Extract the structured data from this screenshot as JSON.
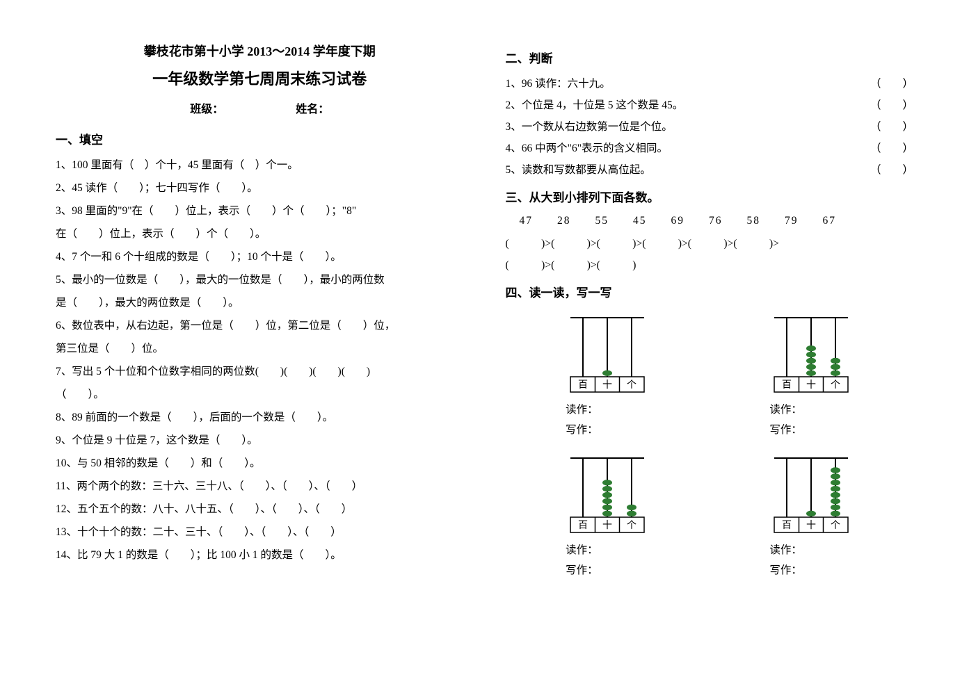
{
  "header": "攀枝花市第十小学 2013～2014 学年度下期",
  "title": "一年级数学第七周周末练习试卷",
  "class_label": "班级：",
  "name_label": "姓名：",
  "section1_title": "一、填空",
  "q1": "1、100 里面有（　）个十，45 里面有（　）个一。",
  "q2": "2、45 读作（　　）；七十四写作（　　）。",
  "q3a": "3、98 里面的\"9\"在（　　）位上，表示（　　）个（　　）；\"8\"",
  "q3b": "在（　　）位上，表示（　　）个（　　）。",
  "q4": "4、7 个一和 6 个十组成的数是（　　）；10 个十是（　　）。",
  "q5a": "5、最小的一位数是（　　），最大的一位数是（　　），最小的两位数",
  "q5b": "是（　　），最大的两位数是（　　）。",
  "q6a": "6、数位表中，从右边起，第一位是（　　）位，第二位是（　　）位，",
  "q6b": "第三位是（　　）位。",
  "q7a": "7、写出 5 个十位和个位数字相同的两位数(　　)(　　)(　　)(　　)",
  "q7b": "（　　）。",
  "q8": "8、89 前面的一个数是（　　），后面的一个数是（　　）。",
  "q9": "9、个位是 9 十位是 7，这个数是（　　）。",
  "q10": "10、与 50 相邻的数是（　　）和（　　）。",
  "q11": "11、两个两个的数：三十六、三十八、（　　）、（　　）、（　　）",
  "q12": "12、五个五个的数：八十、八十五、（　　）、（　　）、（　　）",
  "q13": "13、十个十个的数：二十、三十、（　　）、（　　）、（　　）",
  "q14": "14、比 79 大 1 的数是（　　）；比 100 小 1 的数是（　　）。",
  "section2_title": "二、判断",
  "j1": "1、96 读作：六十九。",
  "j2": "2、个位是 4，十位是 5 这个数是 45。",
  "j3": "3、一个数从右边数第一位是个位。",
  "j4": "4、66 中两个\"6\"表示的含义相同。",
  "j5": "5、读数和写数都要从高位起。",
  "judge_paren": "（　　）",
  "section3_title": "三、从大到小排列下面各数。",
  "sort_nums": "47　　28　　55　　45　　69　　76　　58　　79　　67",
  "sort_line1": "(　　　)>(　　　)>(　　　)>(　　　)>(　　　)>(　　　)>",
  "sort_line2": "(　　　)>(　　　)>(　　　)",
  "section4_title": "四、读一读，写一写",
  "read_label": "读作：",
  "write_label": "写作：",
  "abacus_labels": {
    "bai": "百",
    "shi": "十",
    "ge": "个"
  },
  "abacus": [
    {
      "bai": 0,
      "shi": 1,
      "ge": 0
    },
    {
      "bai": 0,
      "shi": 5,
      "ge": 3
    },
    {
      "bai": 0,
      "shi": 6,
      "ge": 2
    },
    {
      "bai": 0,
      "shi": 1,
      "ge": 8
    }
  ],
  "style": {
    "bead_color": "#2e7d32",
    "line_color": "#000000",
    "rod_color": "#000000"
  }
}
